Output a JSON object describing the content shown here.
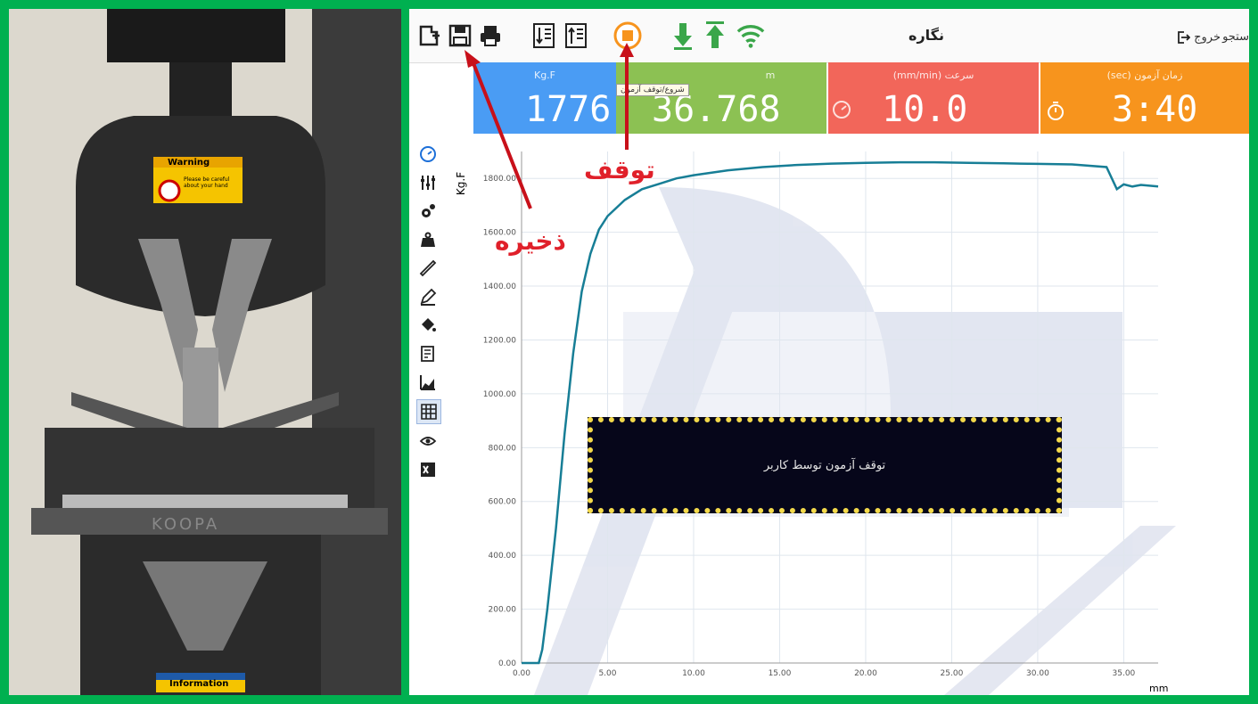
{
  "machine_photo": {
    "warning_label": "Warning",
    "warning_text": "Please be careful about your hand",
    "info_label": "Information",
    "brand": "KOOPA"
  },
  "toolbar": {
    "title": "نگاره",
    "exit_label": "خروج",
    "help_label": "ستجو"
  },
  "stats": [
    {
      "label": "Kg.F",
      "value": "1776",
      "color": "#4a9cf4"
    },
    {
      "label": "m",
      "value": "36.768",
      "color": "#8cc153"
    },
    {
      "label": "(mm/min) سرعت",
      "value": "10.0",
      "color": "#f2665a"
    },
    {
      "label": "(sec) زمان آزمون",
      "value": "3:40",
      "color": "#f7941d"
    }
  ],
  "tooltip": "شروع/توقف آزمون",
  "annotations": {
    "save": "ذخیره",
    "stop": "توقف"
  },
  "overlay_message": "توقف آزمون توسط کاربر",
  "chart_data": {
    "type": "line",
    "ylabel": "Kg.F",
    "xlabel": "mm",
    "xlim": [
      0,
      37
    ],
    "ylim": [
      0,
      1900
    ],
    "x_ticks": [
      "0.00",
      "5.00",
      "10.00",
      "15.00",
      "20.00",
      "25.00",
      "30.00",
      "35.00"
    ],
    "y_ticks": [
      "0.00",
      "200.00",
      "400.00",
      "600.00",
      "800.00",
      "1000.00",
      "1200.00",
      "1400.00",
      "1600.00",
      "1800.00"
    ],
    "series": [
      {
        "color": "#177e96",
        "x": [
          0,
          1,
          1.2,
          1.5,
          2,
          2.5,
          3,
          3.5,
          4,
          4.5,
          5,
          6,
          7,
          8,
          9,
          10,
          12,
          14,
          16,
          18,
          20,
          22,
          24,
          26,
          28,
          30,
          32,
          34,
          34.6,
          35,
          35.5,
          36,
          37
        ],
        "y": [
          0,
          0,
          50,
          200,
          500,
          850,
          1150,
          1380,
          1520,
          1610,
          1660,
          1720,
          1760,
          1780,
          1800,
          1812,
          1830,
          1842,
          1850,
          1855,
          1858,
          1860,
          1860,
          1858,
          1856,
          1854,
          1852,
          1842,
          1760,
          1778,
          1770,
          1776,
          1770
        ]
      }
    ]
  }
}
